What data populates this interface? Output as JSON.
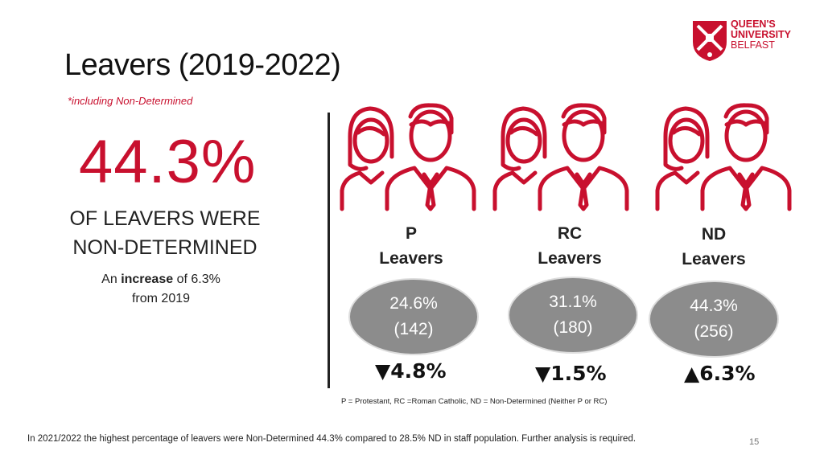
{
  "slide": {
    "title": "Leavers (2019-2022)",
    "note": "*including Non-Determined",
    "big_percent": "44.3%",
    "headline_line1": "OF LEAVERS WERE",
    "headline_line2": "NON-DETERMINED",
    "increase_prefix": "An ",
    "increase_bold": "increase",
    "increase_suffix": " of 6.3%",
    "increase_line2": "from 2019",
    "legend": "P = Protestant, RC =Roman Catholic, ND = Non-Determined (Neither P or RC)",
    "footer": "In 2021/2022 the highest percentage of leavers were Non-Determined 44.3% compared to 28.5% ND in staff population. Further analysis is required.",
    "page_number": "15"
  },
  "logo": {
    "line1": "QUEEN'S",
    "line2": "UNIVERSITY",
    "line3": "BELFAST"
  },
  "groups": [
    {
      "code": "P",
      "label": "Leavers",
      "percent": "24.6%",
      "count": "(142)",
      "change": "▼4.8%"
    },
    {
      "code": "RC",
      "label": "Leavers",
      "percent": "31.1%",
      "count": "(180)",
      "change": "▼1.5%"
    },
    {
      "code": "ND",
      "label": "Leavers",
      "percent": "44.3%",
      "count": "(256)",
      "change": "▲6.3%"
    }
  ],
  "colors": {
    "accent": "#c8102e",
    "ellipse": "#8c8c8c"
  }
}
